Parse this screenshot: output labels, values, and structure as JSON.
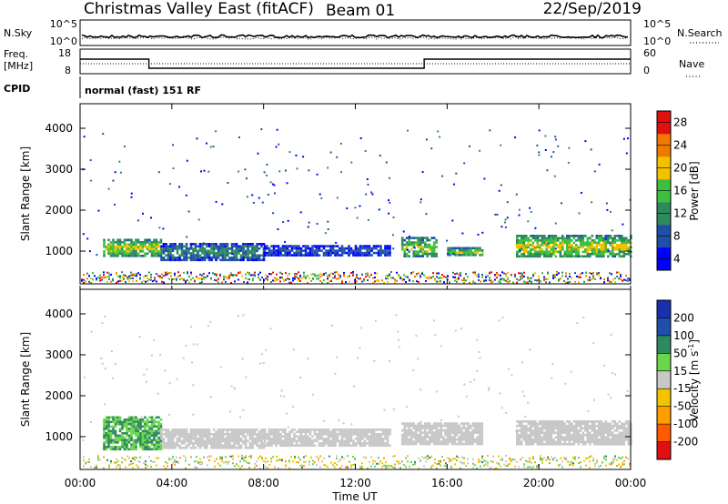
{
  "header": {
    "station": "Christmas Valley East (fitACF)",
    "beam": "Beam 01",
    "date": "22/Sep/2019"
  },
  "noise_panel": {
    "left_label": "N.Sky",
    "left_ticks": [
      "10^5",
      "10^0"
    ],
    "right_label": "N.Search",
    "right_ticks": [
      "10^5",
      "10^0"
    ]
  },
  "freq_panel": {
    "left_label_1": "Freq.",
    "left_label_2": "[MHz]",
    "left_ticks": [
      "18",
      "8"
    ],
    "right_label": "Nave",
    "right_ticks": [
      "60",
      "0"
    ]
  },
  "cpid_panel": {
    "label": "CPID",
    "text": "normal (fast) 151 RF"
  },
  "range_axis": {
    "label": "Slant Range [km]",
    "ticks": [
      "1000",
      "2000",
      "3000",
      "4000"
    ]
  },
  "time_axis": {
    "label": "Time UT",
    "ticks": [
      "00:00",
      "04:00",
      "08:00",
      "12:00",
      "16:00",
      "20:00",
      "00:00"
    ]
  },
  "power_colorbar": {
    "label": "Power [dB]",
    "ticks": [
      "4",
      "8",
      "12",
      "16",
      "20",
      "24",
      "28"
    ],
    "colors": [
      "#0000ff",
      "#1f4fa8",
      "#2e8a5e",
      "#3fbf3f",
      "#f2c200",
      "#f07a00",
      "#e01010"
    ]
  },
  "velocity_colorbar": {
    "label": "Velocity [m s",
    "label_sup": "-1",
    "label_close": "]",
    "ticks": [
      "-200",
      "-100",
      "-50",
      "-15",
      "15",
      "50",
      "100",
      "200"
    ],
    "colors": [
      "#e01010",
      "#ff5a00",
      "#ff9d00",
      "#f2c400",
      "#c8c8c8",
      "#6ad64a",
      "#2e8a5e",
      "#1f4fa8",
      "#1a2fb0"
    ]
  },
  "chart_data": [
    {
      "type": "line",
      "title": "N.Sky / N.Search",
      "x_range": [
        "00:00",
        "24:00"
      ],
      "y_scale": "log",
      "ylim": [
        1,
        100000
      ]
    },
    {
      "type": "line",
      "title": "Freq. [MHz] / Nave",
      "series": [
        {
          "name": "Freq.",
          "x": [
            "00:00",
            "03:00",
            "15:00",
            "24:00"
          ],
          "values": [
            14,
            10,
            14,
            14
          ]
        }
      ],
      "ylim": [
        8,
        18
      ]
    },
    {
      "type": "heatmap",
      "title": "Power [dB]",
      "xlabel": "Time UT",
      "ylabel": "Slant Range [km]",
      "ylim": [
        200,
        4600
      ],
      "color_range": [
        0,
        30
      ],
      "regions": [
        {
          "start": "01:00",
          "end": "03:30",
          "range_km": [
            900,
            1300
          ],
          "level_db": 20
        },
        {
          "start": "03:30",
          "end": "08:00",
          "range_km": [
            800,
            1200
          ],
          "level_db": 12
        },
        {
          "start": "08:00",
          "end": "13:30",
          "range_km": [
            900,
            1150
          ],
          "level_db": 8
        },
        {
          "start": "14:00",
          "end": "15:30",
          "range_km": [
            850,
            1350
          ],
          "level_db": 18
        },
        {
          "start": "16:00",
          "end": "17:30",
          "range_km": [
            900,
            1100
          ],
          "level_db": 18
        },
        {
          "start": "19:00",
          "end": "24:00",
          "range_km": [
            850,
            1400
          ],
          "level_db": 20
        }
      ]
    },
    {
      "type": "heatmap",
      "title": "Velocity [m s-1]",
      "xlabel": "Time UT",
      "ylabel": "Slant Range [km]",
      "ylim": [
        200,
        4600
      ],
      "color_range": [
        -200,
        200
      ],
      "regions": [
        {
          "start": "01:00",
          "end": "03:30",
          "range_km": [
            700,
            1500
          ],
          "velocity": 50
        },
        {
          "start": "03:30",
          "end": "08:00",
          "range_km": [
            700,
            1200
          ],
          "velocity": 0
        },
        {
          "start": "08:00",
          "end": "13:30",
          "range_km": [
            800,
            1200
          ],
          "velocity": 0
        },
        {
          "start": "14:00",
          "end": "17:30",
          "range_km": [
            800,
            1350
          ],
          "velocity": 0
        },
        {
          "start": "19:00",
          "end": "24:00",
          "range_km": [
            800,
            1400
          ],
          "velocity": 0
        }
      ]
    }
  ]
}
